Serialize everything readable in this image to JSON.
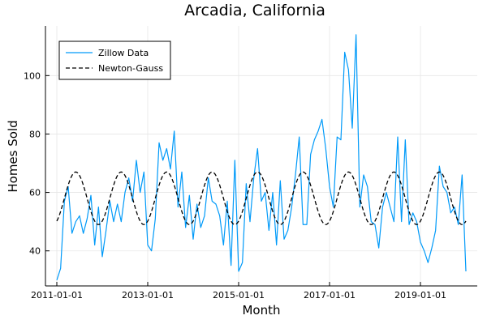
{
  "chart_data": {
    "type": "line",
    "title": "Arcadia, California",
    "xlabel": "Month",
    "ylabel": "Homes Sold",
    "x_ticks": [
      "2011-01-01",
      "2013-01-01",
      "2015-01-01",
      "2017-01-01",
      "2019-01-01"
    ],
    "y_ticks": [
      40,
      60,
      80,
      100
    ],
    "xlim": [
      "2010-10-01",
      "2020-04-01"
    ],
    "ylim": [
      28,
      117
    ],
    "grid": true,
    "legend": "top-left",
    "series": [
      {
        "name": "Zillow Data",
        "color": "#009af9",
        "style": "solid",
        "start": "2011-01-01",
        "frequency": "monthly",
        "values": [
          30,
          34,
          57,
          62,
          46,
          50,
          52,
          46,
          51,
          59,
          42,
          55,
          38,
          47,
          57,
          50,
          56,
          50,
          60,
          65,
          57,
          71,
          60,
          67,
          42,
          40,
          51,
          77,
          71,
          75,
          68,
          81,
          55,
          67,
          48,
          59,
          44,
          56,
          48,
          52,
          65,
          57,
          56,
          52,
          42,
          57,
          35,
          71,
          33,
          36,
          63,
          50,
          65,
          75,
          57,
          60,
          47,
          60,
          42,
          64,
          44,
          47,
          55,
          66,
          79,
          49,
          49,
          73,
          78,
          81,
          85,
          75,
          62,
          55,
          79,
          78,
          108,
          102,
          82,
          114,
          55,
          66,
          62,
          50,
          49,
          41,
          55,
          60,
          55,
          50,
          79,
          50,
          78,
          49,
          53,
          50,
          43,
          40,
          36,
          41,
          47,
          69,
          62,
          60,
          53,
          55,
          49,
          66,
          33
        ]
      },
      {
        "name": "Newton-Gauss",
        "color": "#000000",
        "style": "dashed",
        "model": "sinusoid",
        "mean": 58,
        "amplitude": 9,
        "period_months": 12,
        "peak_month_offset": 5
      }
    ]
  }
}
